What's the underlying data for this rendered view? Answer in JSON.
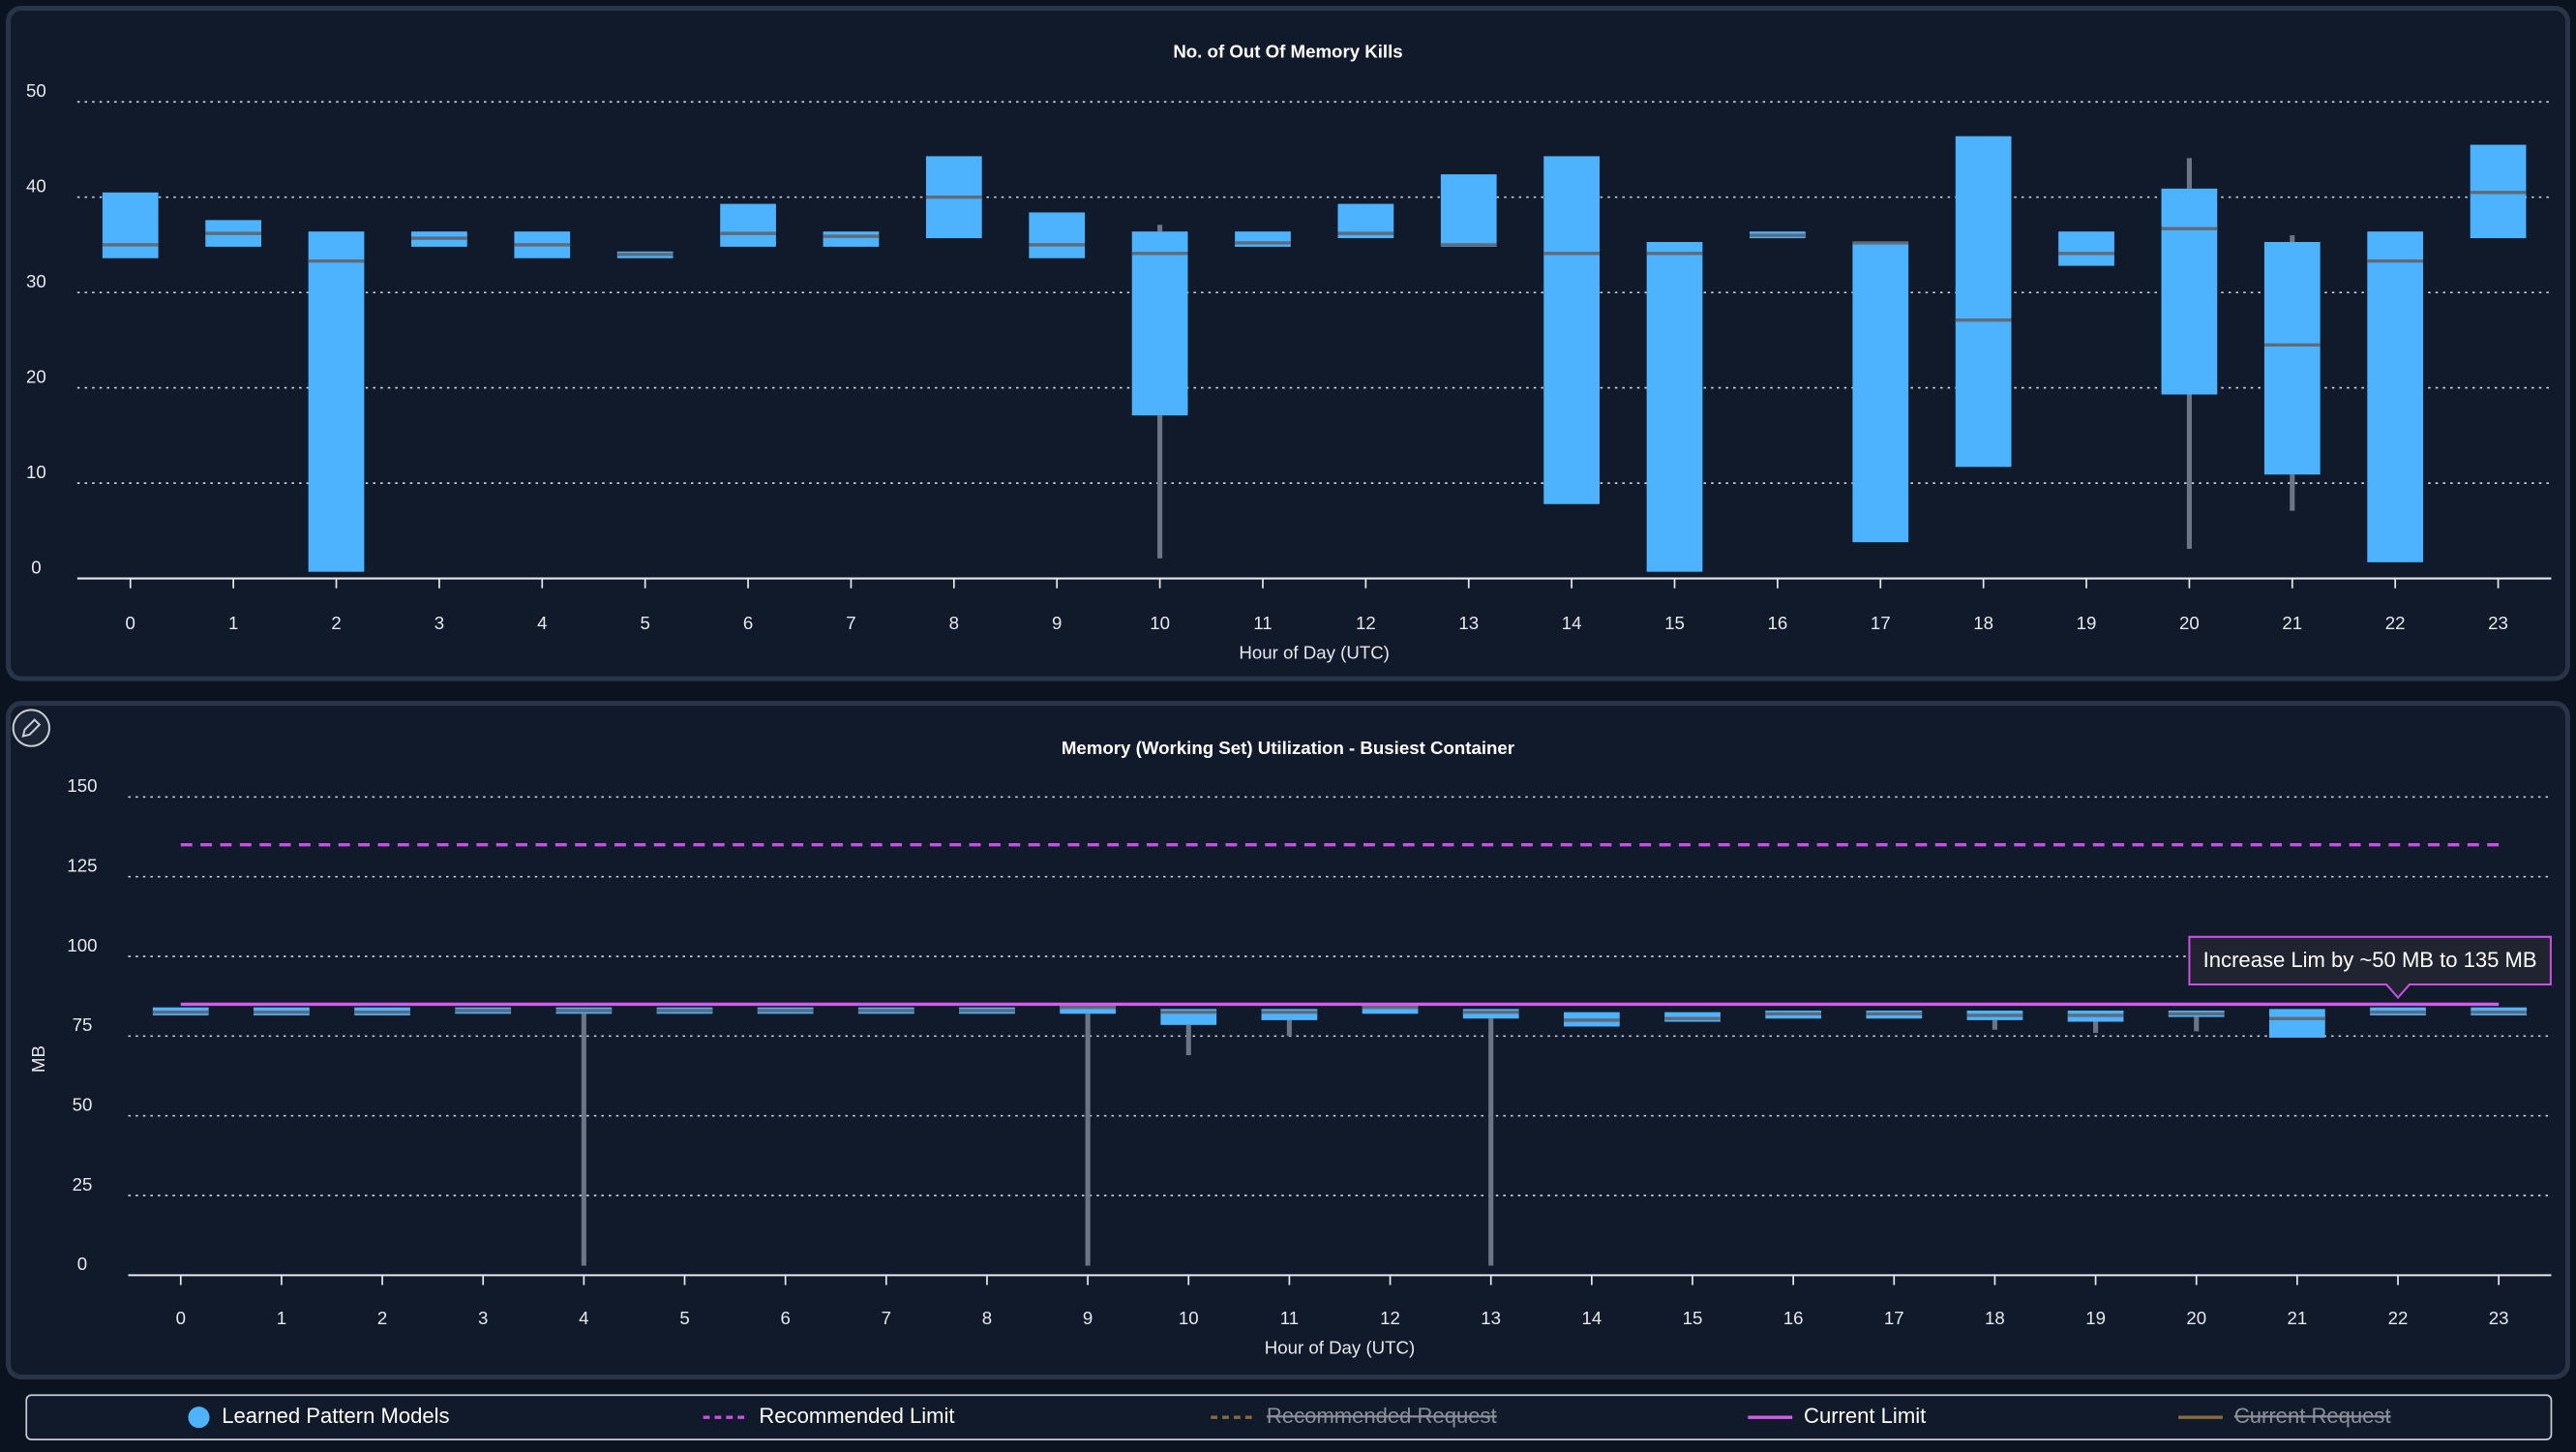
{
  "chart_data": [
    {
      "type": "box",
      "title": "No. of Out Of Memory Kills",
      "x_label": "Hour of Day (UTC)",
      "categories": [
        0,
        1,
        2,
        3,
        4,
        5,
        6,
        7,
        8,
        9,
        10,
        11,
        12,
        13,
        14,
        15,
        16,
        17,
        18,
        19,
        20,
        21,
        22,
        23
      ],
      "ylim": [
        0,
        50
      ],
      "yticks": [
        0,
        10,
        20,
        30,
        40,
        50
      ],
      "grid": true,
      "series": [
        {
          "type": "box",
          "color": "#4db3ff",
          "q1": [
            33.6,
            34.8,
            0.7,
            34.8,
            33.6,
            33.6,
            34.8,
            34.8,
            35.7,
            33.6,
            17.1,
            34.8,
            35.7,
            34.8,
            7.8,
            0.7,
            35.7,
            3.8,
            11.7,
            32.8,
            19.3,
            10.9,
            1.7,
            35.7
          ],
          "median": [
            35,
            36.2,
            33.3,
            35.7,
            35,
            34,
            36.2,
            35.9,
            40,
            35,
            34.1,
            35.2,
            36.2,
            35,
            34.1,
            34.1,
            36,
            35.2,
            27.1,
            34.1,
            36.7,
            24.5,
            33.3,
            40.5
          ],
          "q3": [
            40.5,
            37.6,
            36.4,
            36.4,
            36.4,
            34.3,
            39.3,
            36.4,
            44.3,
            38.4,
            36.4,
            36.4,
            39.3,
            42.4,
            44.3,
            35.3,
            36.4,
            35.3,
            46.4,
            36.4,
            40.9,
            35.3,
            36.4,
            45.5
          ],
          "whisker_low": [
            null,
            null,
            null,
            null,
            null,
            null,
            null,
            null,
            null,
            null,
            2.1,
            null,
            null,
            null,
            null,
            null,
            null,
            null,
            null,
            null,
            3.1,
            7.1,
            null,
            null
          ],
          "whisker_high": [
            null,
            null,
            null,
            null,
            null,
            null,
            null,
            null,
            null,
            null,
            37.1,
            null,
            null,
            null,
            null,
            null,
            null,
            null,
            null,
            null,
            44.1,
            36,
            null,
            null
          ]
        }
      ]
    },
    {
      "type": "box",
      "title": "Memory (Working Set) Utilization - Busiest Container",
      "x_label": "Hour of Day (UTC)",
      "y_label": "MB",
      "categories": [
        0,
        1,
        2,
        3,
        4,
        5,
        6,
        7,
        8,
        9,
        10,
        11,
        12,
        13,
        14,
        15,
        16,
        17,
        18,
        19,
        20,
        21,
        22,
        23
      ],
      "ylim": [
        0,
        150
      ],
      "yticks": [
        0,
        25,
        50,
        75,
        100,
        125,
        150
      ],
      "grid": true,
      "series": [
        {
          "type": "box",
          "name": "Learned Pattern Models",
          "color": "#4db3ff",
          "q1": [
            81.5,
            81.5,
            81.5,
            82,
            82,
            82,
            82,
            82,
            82,
            82,
            78.5,
            80,
            82,
            80.5,
            78,
            79.5,
            80.5,
            80.5,
            80,
            79.5,
            81,
            74.5,
            81.5,
            81.5
          ],
          "median": [
            82.5,
            82.5,
            82.5,
            83,
            83,
            83,
            83,
            83,
            83,
            84,
            82.5,
            82.5,
            84,
            82.5,
            80,
            80.5,
            82,
            82,
            81.5,
            81.5,
            82,
            80.5,
            82.5,
            82.5
          ],
          "q3": [
            84,
            84,
            84,
            84,
            84,
            84,
            84,
            84,
            84,
            85,
            83.5,
            83.5,
            85,
            83.5,
            82.5,
            82.5,
            83,
            83,
            83,
            83,
            83,
            83.5,
            84,
            84
          ],
          "whisker_low": [
            null,
            null,
            null,
            null,
            3,
            null,
            null,
            null,
            null,
            3,
            69,
            75,
            null,
            3,
            null,
            null,
            null,
            null,
            77,
            76,
            76.5,
            null,
            null,
            null
          ],
          "whisker_high": [
            null,
            null,
            null,
            null,
            null,
            null,
            null,
            null,
            null,
            null,
            null,
            null,
            null,
            null,
            null,
            null,
            null,
            null,
            null,
            null,
            null,
            null,
            null,
            null
          ]
        },
        {
          "type": "line",
          "name": "Recommended Limit",
          "color": "#c94fe6",
          "dashed": true,
          "value": 135
        },
        {
          "type": "line",
          "name": "Recommended Request",
          "color": "#8a6a3a",
          "dashed": true,
          "hidden": true
        },
        {
          "type": "line",
          "name": "Current Limit",
          "color": "#d45ce8",
          "dashed": false,
          "value": 85
        },
        {
          "type": "line",
          "name": "Current Request",
          "color": "#8a6a3a",
          "dashed": false,
          "hidden": true
        }
      ],
      "annotation": {
        "text": "Increase Lim by ~50 MB to 135 MB",
        "x": 22,
        "y": 85
      }
    }
  ]
}
